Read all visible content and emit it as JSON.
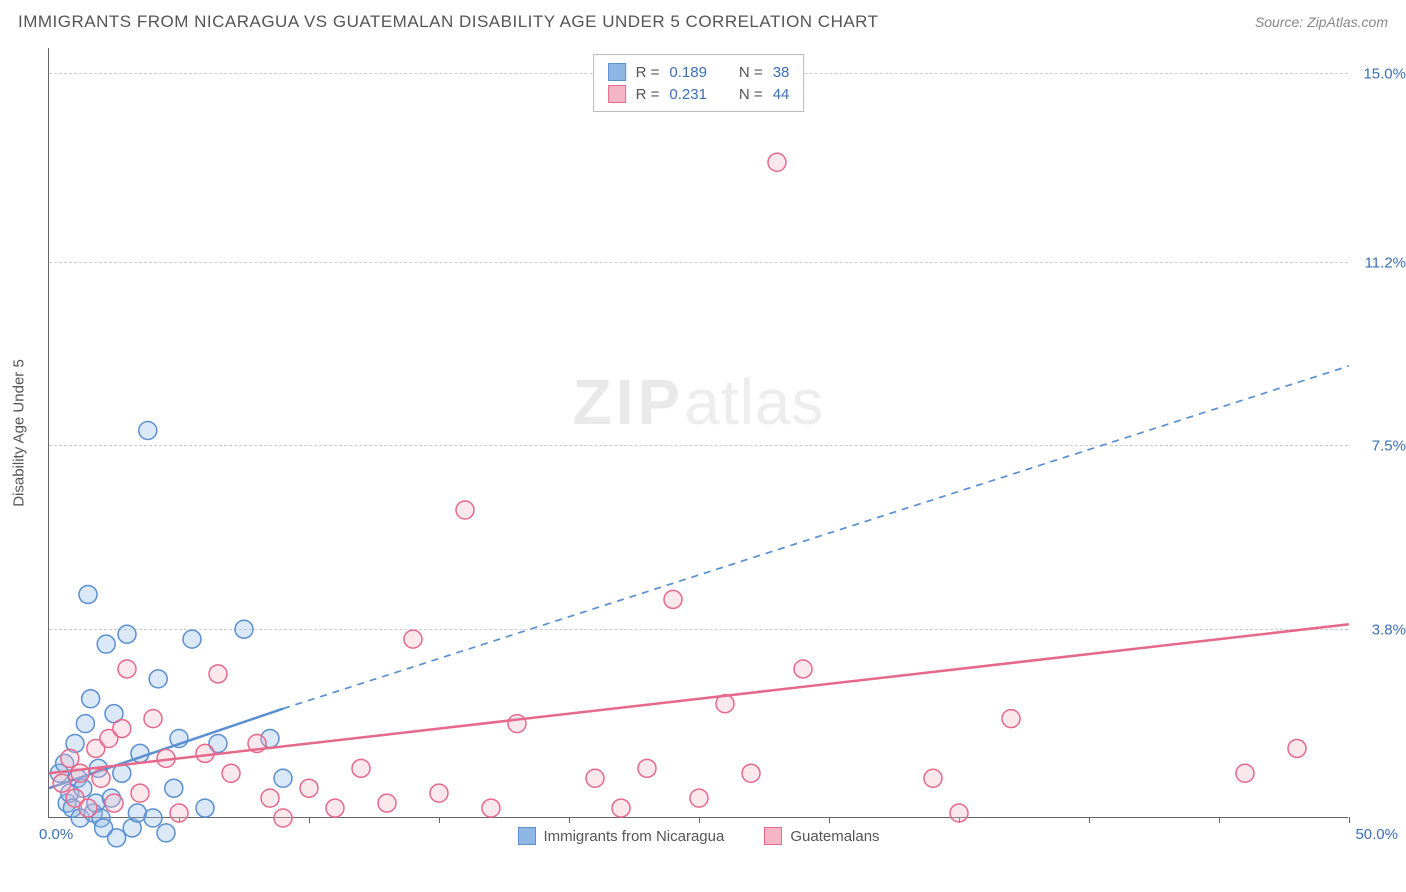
{
  "title": "IMMIGRANTS FROM NICARAGUA VS GUATEMALAN DISABILITY AGE UNDER 5 CORRELATION CHART",
  "source_label": "Source: ",
  "source_value": "ZipAtlas.com",
  "watermark_a": "ZIP",
  "watermark_b": "atlas",
  "y_axis_title": "Disability Age Under 5",
  "chart": {
    "type": "scatter",
    "xlim": [
      0,
      50
    ],
    "ylim": [
      0,
      15.5
    ],
    "x_origin_label": "0.0%",
    "x_max_label": "50.0%",
    "x_tick_positions": [
      5,
      10,
      15,
      20,
      25,
      30,
      35,
      40,
      45,
      50
    ],
    "y_ticks": [
      {
        "v": 3.8,
        "label": "3.8%"
      },
      {
        "v": 7.5,
        "label": "7.5%"
      },
      {
        "v": 11.2,
        "label": "11.2%"
      },
      {
        "v": 15.0,
        "label": "15.0%"
      }
    ],
    "marker_radius": 9,
    "marker_stroke_width": 1.5,
    "marker_fill_opacity": 0.32,
    "background_color": "#ffffff",
    "grid_color": "#cccccc",
    "axis_color": "#666666",
    "tick_label_color": "#3b6fb6",
    "tick_fontsize": 15,
    "watermark_fontsize": 64,
    "watermark_opacity": 0.14
  },
  "series": [
    {
      "id": "nicaragua",
      "label": "Immigrants from Nicaragua",
      "color_fill": "#8fb7e6",
      "color_stroke": "#5a8fd1",
      "r_value": "0.189",
      "n_value": "38",
      "regression": {
        "x1": 0,
        "y1": 0.6,
        "x2": 9,
        "y2": 2.2,
        "dash_to_x": 50,
        "dash_to_y": 9.1,
        "width": 2.5
      },
      "points": [
        [
          0.4,
          0.9
        ],
        [
          0.6,
          1.1
        ],
        [
          0.7,
          0.3
        ],
        [
          0.8,
          0.5
        ],
        [
          0.9,
          0.2
        ],
        [
          1.0,
          1.5
        ],
        [
          1.1,
          0.8
        ],
        [
          1.2,
          0.0
        ],
        [
          1.3,
          0.6
        ],
        [
          1.4,
          1.9
        ],
        [
          1.5,
          4.5
        ],
        [
          1.6,
          2.4
        ],
        [
          1.7,
          0.1
        ],
        [
          1.8,
          0.3
        ],
        [
          1.9,
          1.0
        ],
        [
          2.0,
          0.0
        ],
        [
          2.1,
          -0.2
        ],
        [
          2.2,
          3.5
        ],
        [
          2.4,
          0.4
        ],
        [
          2.5,
          2.1
        ],
        [
          2.6,
          -0.4
        ],
        [
          2.8,
          0.9
        ],
        [
          3.0,
          3.7
        ],
        [
          3.2,
          -0.2
        ],
        [
          3.4,
          0.1
        ],
        [
          3.5,
          1.3
        ],
        [
          3.8,
          7.8
        ],
        [
          4.0,
          0.0
        ],
        [
          4.2,
          2.8
        ],
        [
          4.5,
          -0.3
        ],
        [
          4.8,
          0.6
        ],
        [
          5.0,
          1.6
        ],
        [
          5.5,
          3.6
        ],
        [
          6.0,
          0.2
        ],
        [
          6.5,
          1.5
        ],
        [
          7.5,
          3.8
        ],
        [
          8.5,
          1.6
        ],
        [
          9.0,
          0.8
        ]
      ]
    },
    {
      "id": "guatemalans",
      "label": "Guatemalans",
      "color_fill": "#f4b6c7",
      "color_stroke": "#e6698c",
      "r_value": "0.231",
      "n_value": "44",
      "regression": {
        "x1": 0,
        "y1": 0.9,
        "x2": 50,
        "y2": 3.9,
        "dash_to_x": null,
        "dash_to_y": null,
        "width": 2.5
      },
      "points": [
        [
          0.5,
          0.7
        ],
        [
          0.8,
          1.2
        ],
        [
          1.0,
          0.4
        ],
        [
          1.2,
          0.9
        ],
        [
          1.5,
          0.2
        ],
        [
          1.8,
          1.4
        ],
        [
          2.0,
          0.8
        ],
        [
          2.3,
          1.6
        ],
        [
          2.5,
          0.3
        ],
        [
          2.8,
          1.8
        ],
        [
          3.0,
          3.0
        ],
        [
          3.5,
          0.5
        ],
        [
          4.0,
          2.0
        ],
        [
          4.5,
          1.2
        ],
        [
          5.0,
          0.1
        ],
        [
          6.0,
          1.3
        ],
        [
          6.5,
          2.9
        ],
        [
          7.0,
          0.9
        ],
        [
          8.0,
          1.5
        ],
        [
          8.5,
          0.4
        ],
        [
          9.0,
          0.0
        ],
        [
          10.0,
          0.6
        ],
        [
          11.0,
          0.2
        ],
        [
          12.0,
          1.0
        ],
        [
          13.0,
          0.3
        ],
        [
          14.0,
          3.6
        ],
        [
          15.0,
          0.5
        ],
        [
          16.0,
          6.2
        ],
        [
          17.0,
          0.2
        ],
        [
          18.0,
          1.9
        ],
        [
          21.0,
          0.8
        ],
        [
          22.0,
          0.2
        ],
        [
          23.0,
          1.0
        ],
        [
          24.0,
          4.4
        ],
        [
          25.0,
          0.4
        ],
        [
          26.0,
          2.3
        ],
        [
          27.0,
          0.9
        ],
        [
          28.0,
          13.2
        ],
        [
          29.0,
          3.0
        ],
        [
          34.0,
          0.8
        ],
        [
          35.0,
          0.1
        ],
        [
          37.0,
          2.0
        ],
        [
          46.0,
          0.9
        ],
        [
          48.0,
          1.4
        ]
      ]
    }
  ],
  "stats_box": {
    "r_label": "R =",
    "n_label": "N ="
  }
}
